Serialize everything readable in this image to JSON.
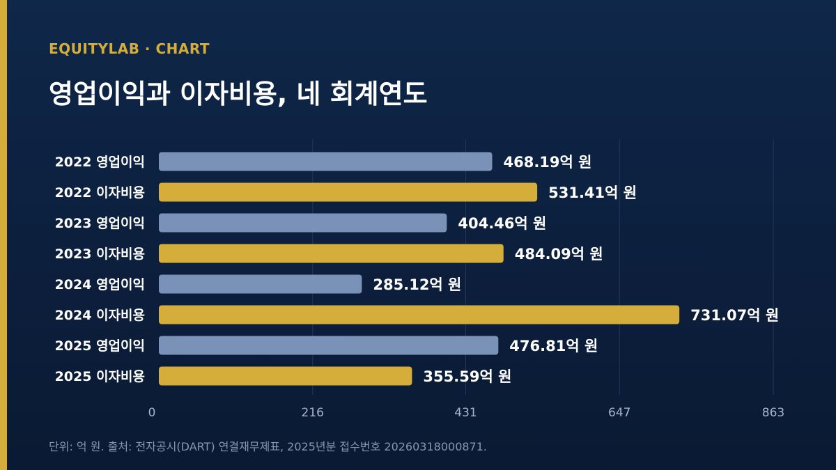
{
  "header": {
    "brand": "EQUITYLAB · CHART",
    "title": "영업이익과 이자비용, 네 회계연도"
  },
  "footnote": "단위: 억 원. 출처: 전자공시(DART) 연결재무제표, 2025년분 접수번호 20260318000871.",
  "colors": {
    "background": "#0c1f3d",
    "accent": "#d4ad3a",
    "operating_income": "#7a92b7",
    "interest_expense": "#d4ad3a",
    "gridline": "#22385b",
    "tick_text": "#a8b5cc"
  },
  "chart_data": {
    "type": "bar",
    "orientation": "horizontal",
    "categories": [
      "2022 영업이익",
      "2022 이자비용",
      "2023 영업이익",
      "2023 이자비용",
      "2024 영업이익",
      "2024 이자비용",
      "2025 영업이익",
      "2025 이자비용"
    ],
    "values": [
      468.19,
      531.41,
      404.46,
      484.09,
      285.12,
      731.07,
      476.81,
      355.59
    ],
    "value_labels": [
      "468.19억 원",
      "531.41억 원",
      "404.46억 원",
      "484.09억 원",
      "285.12억 원",
      "731.07억 원",
      "476.81억 원",
      "355.59억 원"
    ],
    "bar_kinds": [
      "operating_income",
      "interest_expense",
      "operating_income",
      "interest_expense",
      "operating_income",
      "interest_expense",
      "operating_income",
      "interest_expense"
    ],
    "xlim": [
      0,
      863
    ],
    "x_ticks": [
      0,
      216,
      431,
      647,
      863
    ],
    "grid": true,
    "legend": "none"
  }
}
